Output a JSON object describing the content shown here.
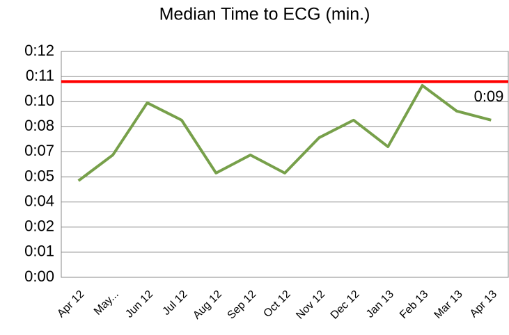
{
  "chart_data": {
    "type": "line",
    "title": "Median Time to ECG (min.)",
    "categories": [
      "Apr 12",
      "May...",
      "Jun 12",
      "Jul 12",
      "Aug 12",
      "Sep 12",
      "Oct 12",
      "Nov 12",
      "Dec 12",
      "Jan 13",
      "Feb 13",
      "Mar 13",
      "Apr 13"
    ],
    "series": [
      {
        "name": "Median Time to ECG",
        "color": "#77a04a",
        "values": [
          5.13,
          6.5,
          9.27,
          8.35,
          5.54,
          6.5,
          5.54,
          7.42,
          8.35,
          6.94,
          10.19,
          8.83,
          8.35
        ]
      }
    ],
    "reference_line": {
      "value": 10.4,
      "color": "#ff0000"
    },
    "annotation": "0:09",
    "ylim": [
      0,
      12
    ],
    "yticks": [
      {
        "value": 0,
        "label": "0:00"
      },
      {
        "value": 1.333,
        "label": "0:01"
      },
      {
        "value": 2.667,
        "label": "0:02"
      },
      {
        "value": 4,
        "label": "0:04"
      },
      {
        "value": 5.333,
        "label": "0:05"
      },
      {
        "value": 6.667,
        "label": "0:07"
      },
      {
        "value": 8,
        "label": "0:08"
      },
      {
        "value": 9.333,
        "label": "0:10"
      },
      {
        "value": 10.667,
        "label": "0:11"
      },
      {
        "value": 12,
        "label": "0:12"
      }
    ],
    "grid": true
  }
}
